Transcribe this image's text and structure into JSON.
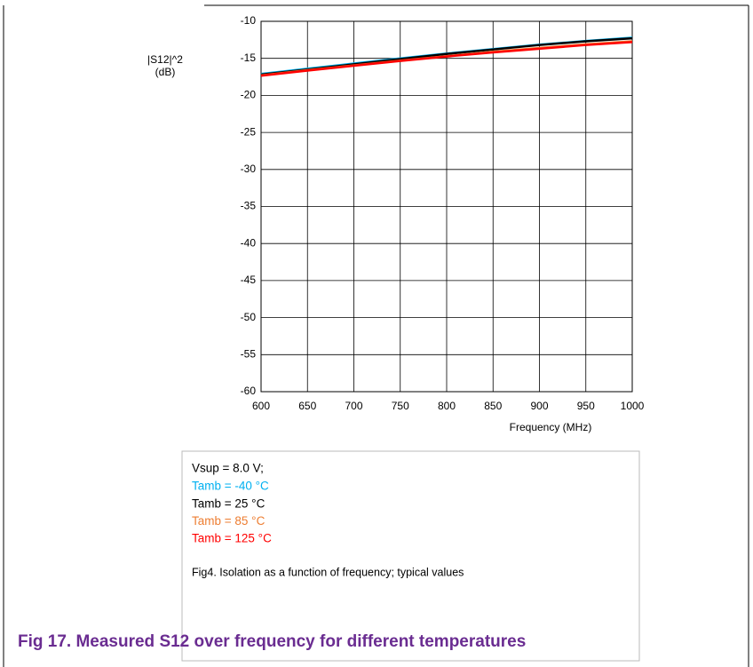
{
  "chart_data": {
    "type": "line",
    "x": [
      600,
      650,
      700,
      750,
      800,
      850,
      900,
      950,
      1000
    ],
    "series": [
      {
        "name": "Tamb = -40 °C",
        "color": "#00b0f0",
        "values": [
          -17.1,
          -16.4,
          -15.7,
          -15.0,
          -14.35,
          -13.75,
          -13.15,
          -12.65,
          -12.2
        ]
      },
      {
        "name": "Tamb = 25 °C",
        "color": "#000000",
        "values": [
          -17.2,
          -16.5,
          -15.8,
          -15.1,
          -14.4,
          -13.8,
          -13.2,
          -12.7,
          -12.3
        ]
      },
      {
        "name": "Tamb = 85 °C",
        "color": "#ed7d31",
        "values": [
          -17.3,
          -16.6,
          -15.95,
          -15.3,
          -14.7,
          -14.1,
          -13.6,
          -13.1,
          -12.7
        ]
      },
      {
        "name": "Tamb = 125 °C",
        "color": "#ff0000",
        "values": [
          -17.35,
          -16.65,
          -16.0,
          -15.35,
          -14.75,
          -14.2,
          -13.7,
          -13.2,
          -12.8
        ]
      }
    ],
    "xlim": [
      600,
      1000
    ],
    "xticks": [
      600,
      650,
      700,
      750,
      800,
      850,
      900,
      950,
      1000
    ],
    "ylim": [
      -60,
      -10
    ],
    "yticks": [
      -60,
      -55,
      -50,
      -45,
      -40,
      -35,
      -30,
      -25,
      -20,
      -15,
      -10
    ],
    "grid": true,
    "ylabel": [
      "|S12|^2",
      "(dB)"
    ],
    "xlabel": "Frequency (MHz)",
    "annotations": [
      "Vsup = 8.0 V;",
      "Fig4.  Isolation as a function of frequency; typical values"
    ]
  },
  "caption": "Fig 17. Measured S12 over frequency for different temperatures"
}
